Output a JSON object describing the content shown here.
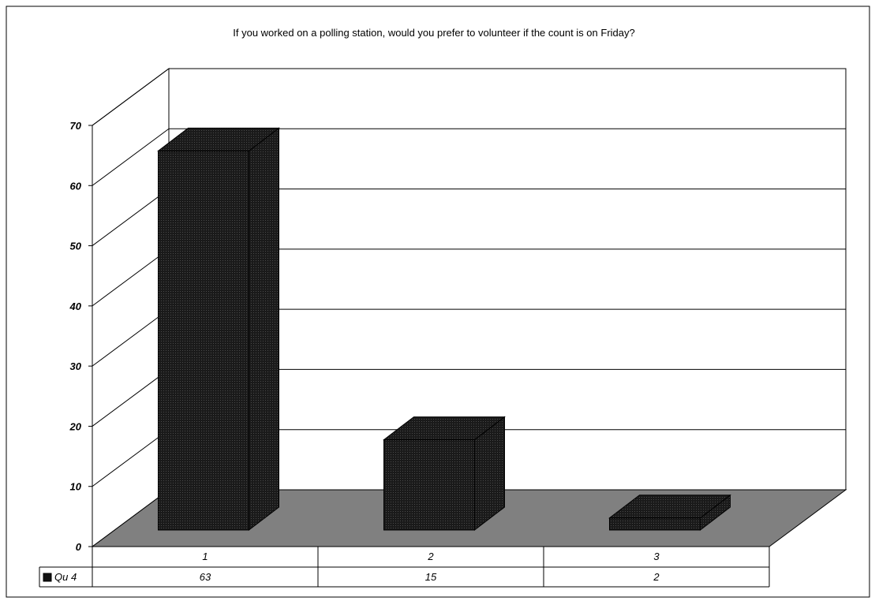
{
  "chart_data": {
    "type": "bar",
    "title": "If you worked on a polling station, would you prefer to volunteer if the count is on Friday?",
    "categories": [
      "1",
      "2",
      "3"
    ],
    "series": [
      {
        "name": "Qu 4",
        "values": [
          63,
          15,
          2
        ]
      }
    ],
    "data_labels": [
      "63",
      "15",
      "2"
    ],
    "ylim": [
      0,
      70
    ],
    "yticks": [
      "0",
      "10",
      "20",
      "30",
      "40",
      "50",
      "60",
      "70"
    ],
    "grid": true,
    "legend_placement": "data-table-left",
    "colors": {
      "bar": "#111111",
      "floor": "#808080",
      "wall": "#ffffff",
      "border": "#000000"
    }
  }
}
